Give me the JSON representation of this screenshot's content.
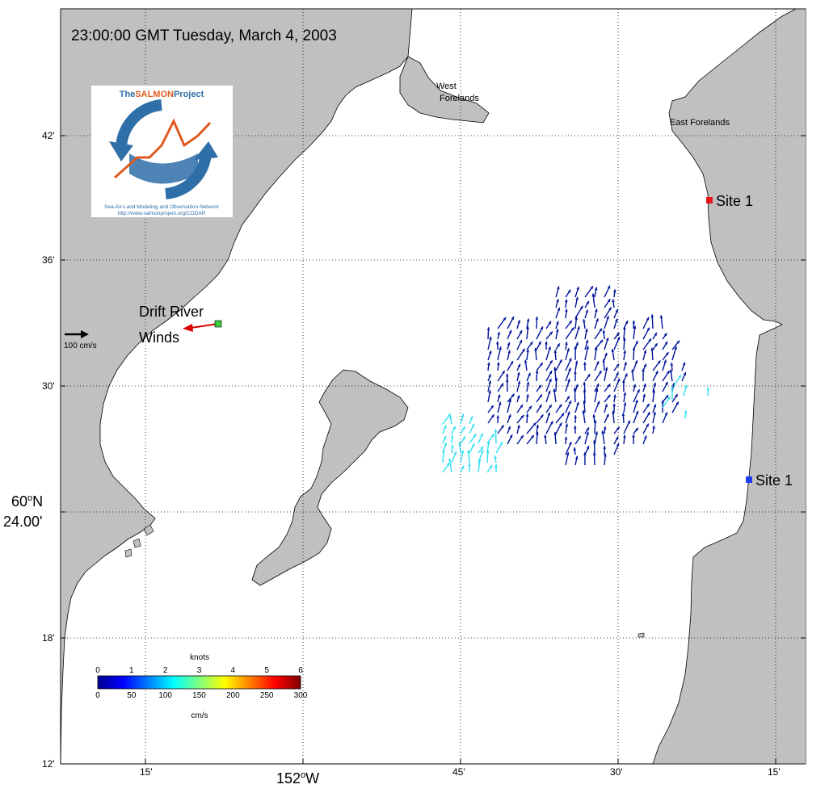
{
  "timestamp": "23:00:00 GMT Tuesday, March 4, 2003",
  "logo": {
    "name_prefix": "The",
    "name_highlight": "SALMON",
    "name_suffix": "Project",
    "network": "Sea-Air-Land Modeling and Observation Network",
    "url": "http://www.salmonproject.org/CODAR"
  },
  "places": {
    "west_forelands_line1": "West",
    "west_forelands_line2": "Forelands",
    "east_forelands": "East Forelands",
    "drift_river_line1": "Drift River",
    "drift_river_line2": "Winds"
  },
  "sites": [
    {
      "label": "Site 1",
      "color": "#e8141b"
    },
    {
      "label": "Site 1",
      "color": "#1f3df0"
    }
  ],
  "reference_arrow": {
    "label": "100 cm/s"
  },
  "axes": {
    "lat_ticks": [
      "42'",
      "36'",
      "30'",
      "18'",
      "12'"
    ],
    "lat_main_deg": "60",
    "lat_main_deg_suffix": "N",
    "lat_main_min": "24.00'",
    "lon_ticks": [
      "15'",
      "45'",
      "30'",
      "15'"
    ],
    "lon_main_deg": "152",
    "lon_main_deg_suffix": "W"
  },
  "colorbar": {
    "top_unit": "knots",
    "bottom_unit": "cm/s",
    "knots_ticks": [
      "0",
      "1",
      "2",
      "3",
      "4",
      "5",
      "6"
    ],
    "cms_ticks": [
      "0",
      "50",
      "100",
      "150",
      "200",
      "250",
      "300"
    ]
  },
  "colors": {
    "land": "#c0c0c0",
    "water": "#ffffff",
    "wind_arrow": "#d90000",
    "current_slow": "#00149a",
    "current_fast": "#30e0f0"
  }
}
